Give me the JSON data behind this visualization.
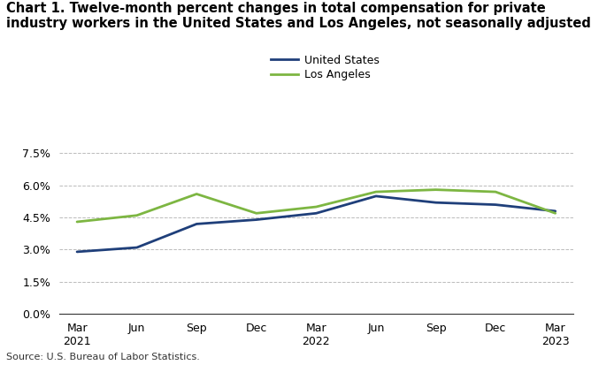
{
  "title_line1": "Chart 1. Twelve-month percent changes in total compensation for private",
  "title_line2": "industry workers in the United States and Los Angeles, not seasonally adjusted",
  "us_values": [
    2.9,
    3.1,
    4.2,
    4.4,
    4.7,
    5.5,
    5.2,
    5.1,
    4.8
  ],
  "la_values": [
    4.3,
    4.6,
    5.6,
    4.7,
    5.0,
    5.7,
    5.8,
    5.7,
    4.7
  ],
  "x_tick_labels": [
    "Mar\n2021",
    "Jun",
    "Sep",
    "Dec",
    "Mar\n2022",
    "Jun",
    "Sep",
    "Dec",
    "Mar\n2023"
  ],
  "us_color": "#1f3f7a",
  "la_color": "#7db642",
  "ylim": [
    0.0,
    7.5
  ],
  "yticks": [
    0.0,
    1.5,
    3.0,
    4.5,
    6.0,
    7.5
  ],
  "ytick_labels": [
    "0.0%",
    "1.5%",
    "3.0%",
    "4.5%",
    "6.0%",
    "7.5%"
  ],
  "legend_us": "United States",
  "legend_la": "Los Angeles",
  "source": "Source: U.S. Bureau of Labor Statistics.",
  "line_width": 2.0,
  "background_color": "#ffffff",
  "grid_color": "#aaaaaa"
}
